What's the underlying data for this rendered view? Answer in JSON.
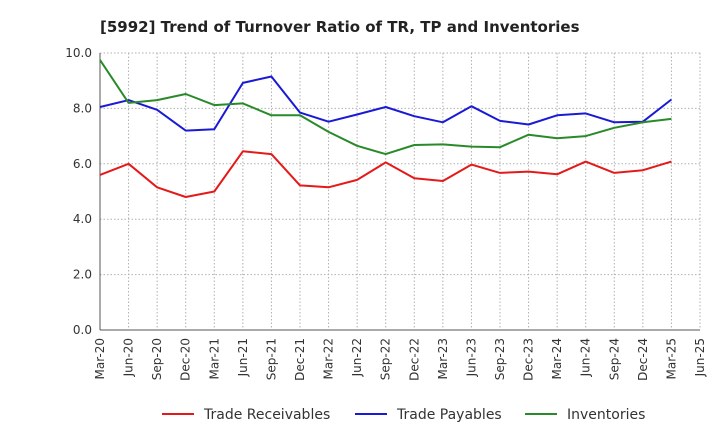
{
  "chart_data": {
    "type": "line",
    "title": "[5992]  Trend of Turnover Ratio of TR, TP and Inventories",
    "xlabel": "",
    "ylabel": "",
    "ylim": [
      0,
      10
    ],
    "yticks": [
      "0.0",
      "2.0",
      "4.0",
      "6.0",
      "8.0",
      "10.0"
    ],
    "x": [
      "Mar-20",
      "Jun-20",
      "Sep-20",
      "Dec-20",
      "Mar-21",
      "Jun-21",
      "Sep-21",
      "Dec-21",
      "Mar-22",
      "Jun-22",
      "Sep-22",
      "Dec-22",
      "Mar-23",
      "Jun-23",
      "Sep-23",
      "Dec-23",
      "Mar-24",
      "Jun-24",
      "Sep-24",
      "Dec-24",
      "Mar-25",
      "Jun-25"
    ],
    "grid": true,
    "legend_position": "bottom",
    "series": [
      {
        "name": "Trade Receivables",
        "color": "#e41a1a",
        "values": [
          5.6,
          6.0,
          5.15,
          4.8,
          5.0,
          6.45,
          6.35,
          5.22,
          5.15,
          5.42,
          6.05,
          5.48,
          5.38,
          5.97,
          5.67,
          5.72,
          5.62,
          6.08,
          5.67,
          5.77,
          6.08,
          null
        ]
      },
      {
        "name": "Trade Payables",
        "color": "#1a1ad6",
        "values": [
          8.05,
          8.3,
          7.95,
          7.2,
          7.25,
          8.92,
          9.15,
          7.85,
          7.52,
          7.78,
          8.05,
          7.72,
          7.5,
          8.08,
          7.55,
          7.42,
          7.75,
          7.82,
          7.5,
          7.52,
          8.32,
          null
        ]
      },
      {
        "name": "Inventories",
        "color": "#2a8a2a",
        "values": [
          9.75,
          8.2,
          8.3,
          8.52,
          8.12,
          8.18,
          7.75,
          7.75,
          7.15,
          6.65,
          6.35,
          6.68,
          6.7,
          6.62,
          6.6,
          7.05,
          6.92,
          7.0,
          7.3,
          7.5,
          7.62,
          null
        ]
      }
    ]
  }
}
